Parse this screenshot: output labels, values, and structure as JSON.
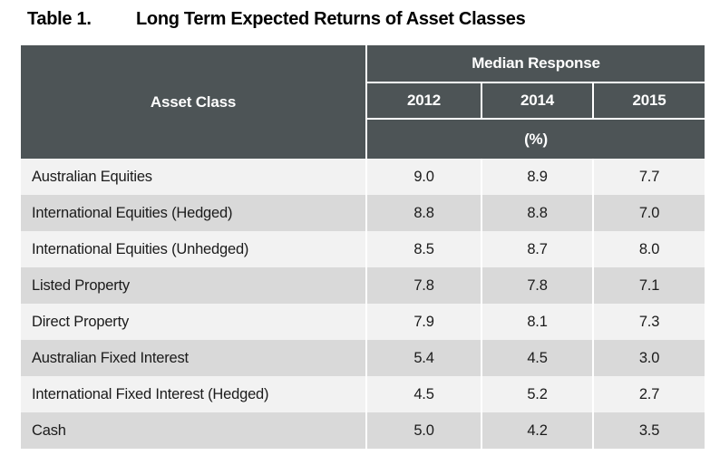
{
  "caption": {
    "label": "Table 1.",
    "title": "Long Term Expected Returns of Asset Classes"
  },
  "table": {
    "header": {
      "asset_class": "Asset Class",
      "group": "Median Response",
      "years": [
        "2012",
        "2014",
        "2015"
      ],
      "unit": "(%)"
    },
    "rows": [
      {
        "asset": "Australian Equities",
        "values": [
          "9.0",
          "8.9",
          "7.7"
        ]
      },
      {
        "asset": "International Equities (Hedged)",
        "values": [
          "8.8",
          "8.8",
          "7.0"
        ]
      },
      {
        "asset": "International Equities (Unhedged)",
        "values": [
          "8.5",
          "8.7",
          "8.0"
        ]
      },
      {
        "asset": "Listed Property",
        "values": [
          "7.8",
          "7.8",
          "7.1"
        ]
      },
      {
        "asset": "Direct Property",
        "values": [
          "7.9",
          "8.1",
          "7.3"
        ]
      },
      {
        "asset": "Australian Fixed Interest",
        "values": [
          "5.4",
          "4.5",
          "3.0"
        ]
      },
      {
        "asset": "International Fixed Interest (Hedged)",
        "values": [
          "4.5",
          "5.2",
          "2.7"
        ]
      },
      {
        "asset": "Cash",
        "values": [
          "5.0",
          "4.2",
          "3.5"
        ]
      }
    ]
  },
  "colors": {
    "header_bg": "#4D5456",
    "header_text": "#FFFFFF",
    "row_light": "#F2F2F2",
    "row_dark": "#D9D9D9",
    "separator": "#FFFFFF",
    "body_text": "#1B1B1B"
  }
}
